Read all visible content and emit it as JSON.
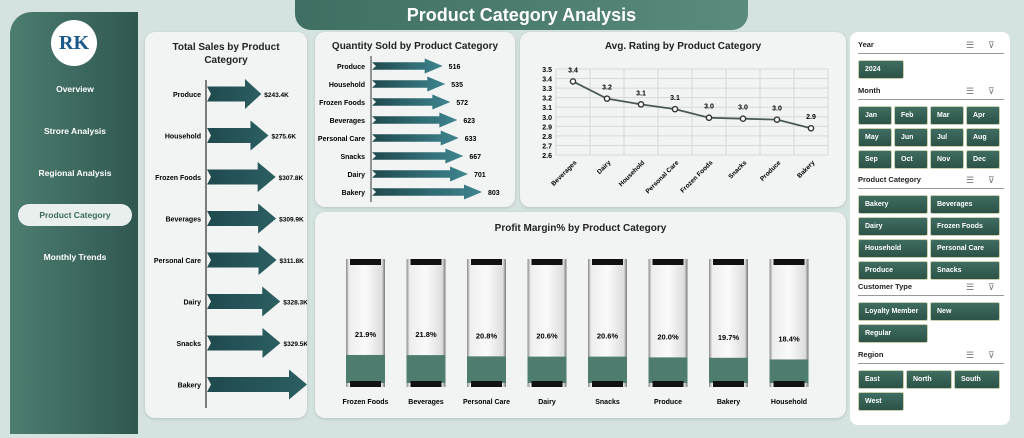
{
  "title": "Product Category Analysis",
  "logo_text": "RK",
  "nav": [
    {
      "label": "Overview"
    },
    {
      "label": "Strore Analysis"
    },
    {
      "label": "Regional Analysis"
    },
    {
      "label": "Product Category",
      "active": true
    },
    {
      "label": "Monthly Trends"
    }
  ],
  "colors": {
    "accent": "#2e5f5a",
    "sidebar": "#3f6e63",
    "fill": "#4e7d70"
  },
  "chart_data": [
    {
      "type": "bar",
      "title": "Total Sales by Product Category",
      "categories": [
        "Produce",
        "Household",
        "Frozen Foods",
        "Beverages",
        "Personal Care",
        "Dairy",
        "Snacks",
        "Bakery"
      ],
      "values": [
        243.4,
        275.6,
        307.8,
        309.9,
        311.8,
        328.3,
        329.5,
        448.3
      ],
      "labels": [
        "$243.4K",
        "$275.6K",
        "$307.8K",
        "$309.9K",
        "$311.8K",
        "$328.3K",
        "$329.5K",
        "$448.3K"
      ],
      "orientation": "horizontal"
    },
    {
      "type": "bar",
      "title": "Quantity Sold by Product Category",
      "categories": [
        "Produce",
        "Household",
        "Frozen Foods",
        "Beverages",
        "Personal Care",
        "Snacks",
        "Dairy",
        "Bakery"
      ],
      "values": [
        516,
        535,
        572,
        623,
        633,
        667,
        701,
        803
      ],
      "orientation": "horizontal"
    },
    {
      "type": "line",
      "title": "Avg. Rating by Product Category",
      "categories": [
        "Beverages",
        "Dairy",
        "Household",
        "Personal Care",
        "Frozen Foods",
        "Snacks",
        "Produce",
        "Bakery"
      ],
      "values": [
        3.37,
        3.19,
        3.13,
        3.08,
        2.99,
        2.98,
        2.97,
        2.88
      ],
      "labels": [
        "3.4",
        "3.2",
        "3.1",
        "3.1",
        "3.0",
        "3.0",
        "3.0",
        "2.9"
      ],
      "ylim": [
        2.6,
        3.5
      ],
      "yticks": [
        "2.6",
        "2.7",
        "2.8",
        "2.9",
        "3.0",
        "3.1",
        "3.2",
        "3.3",
        "3.4",
        "3.5"
      ],
      "grid": true
    },
    {
      "type": "bar",
      "title": "Profit Margin% by Product Category",
      "categories": [
        "Frozen Foods",
        "Beverages",
        "Personal Care",
        "Dairy",
        "Snacks",
        "Produce",
        "Bakery",
        "Household"
      ],
      "values": [
        21.9,
        21.8,
        20.8,
        20.6,
        20.6,
        20.0,
        19.7,
        18.4
      ],
      "labels": [
        "21.9%",
        "21.8%",
        "20.8%",
        "20.6%",
        "20.6%",
        "20.0%",
        "19.7%",
        "18.4%"
      ]
    }
  ],
  "slicers": [
    {
      "title": "Year",
      "items": [
        "2024"
      ]
    },
    {
      "title": "Month",
      "items": [
        "Jan",
        "Feb",
        "Mar",
        "Apr",
        "May",
        "Jun",
        "Jul",
        "Aug",
        "Sep",
        "Oct",
        "Nov",
        "Dec"
      ]
    },
    {
      "title": "Product Category",
      "items": [
        "Bakery",
        "Beverages",
        "Dairy",
        "Frozen Foods",
        "Household",
        "Personal Care",
        "Produce",
        "Snacks"
      ]
    },
    {
      "title": "Customer Type",
      "items": [
        "Loyalty Member",
        "New",
        "Regular"
      ]
    },
    {
      "title": "Region",
      "items": [
        "East",
        "North",
        "South",
        "West"
      ]
    }
  ]
}
